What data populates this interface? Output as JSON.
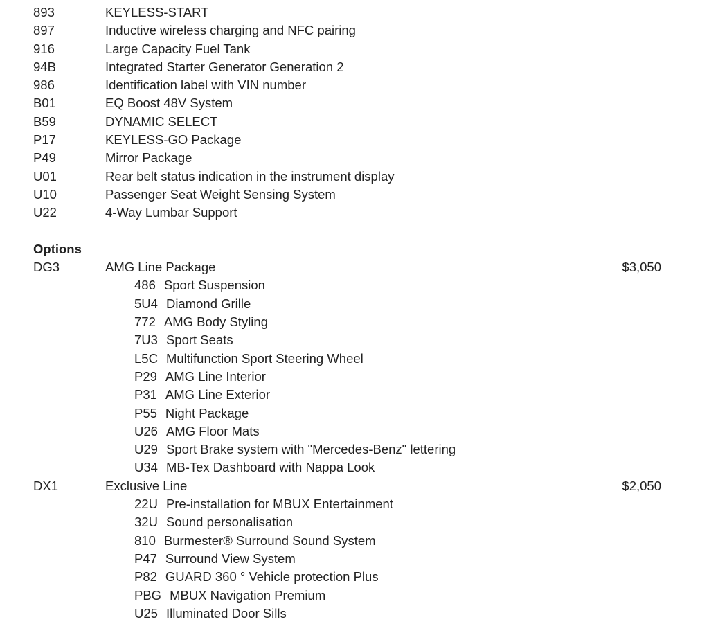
{
  "standard_items": [
    {
      "code": "893",
      "desc": "KEYLESS-START"
    },
    {
      "code": "897",
      "desc": "Inductive wireless charging and NFC pairing"
    },
    {
      "code": "916",
      "desc": "Large Capacity Fuel Tank"
    },
    {
      "code": "94B",
      "desc": "Integrated Starter Generator Generation 2"
    },
    {
      "code": "986",
      "desc": "Identification label with VIN number"
    },
    {
      "code": "B01",
      "desc": "EQ Boost 48V System"
    },
    {
      "code": "B59",
      "desc": "DYNAMIC SELECT"
    },
    {
      "code": "P17",
      "desc": "KEYLESS-GO Package"
    },
    {
      "code": "P49",
      "desc": "Mirror Package"
    },
    {
      "code": "U01",
      "desc": "Rear belt status indication in the instrument display"
    },
    {
      "code": "U10",
      "desc": "Passenger Seat Weight Sensing System"
    },
    {
      "code": "U22",
      "desc": "4-Way Lumbar Support"
    }
  ],
  "options_heading": "Options",
  "options": [
    {
      "code": "DG3",
      "desc": "AMG Line Package",
      "price": "$3,050",
      "items": [
        {
          "code": "486",
          "desc": "Sport Suspension"
        },
        {
          "code": "5U4",
          "desc": "Diamond Grille"
        },
        {
          "code": "772",
          "desc": "AMG Body Styling"
        },
        {
          "code": "7U3",
          "desc": "Sport Seats"
        },
        {
          "code": "L5C",
          "desc": "Multifunction Sport Steering Wheel"
        },
        {
          "code": "P29",
          "desc": "AMG Line Interior"
        },
        {
          "code": "P31",
          "desc": "AMG Line Exterior"
        },
        {
          "code": "P55",
          "desc": "Night Package"
        },
        {
          "code": "U26",
          "desc": "AMG Floor Mats"
        },
        {
          "code": "U29",
          "desc": "Sport Brake system with \"Mercedes-Benz\" lettering"
        },
        {
          "code": "U34",
          "desc": "MB-Tex Dashboard with Nappa Look"
        }
      ]
    },
    {
      "code": "DX1",
      "desc": "Exclusive Line",
      "price": "$2,050",
      "items": [
        {
          "code": "22U",
          "desc": "Pre-installation for MBUX Entertainment"
        },
        {
          "code": "32U",
          "desc": "Sound personalisation"
        },
        {
          "code": "810",
          "desc": "Burmester® Surround Sound System"
        },
        {
          "code": "P47",
          "desc": "Surround View System"
        },
        {
          "code": "P82",
          "desc": "GUARD 360 ° Vehicle protection Plus"
        },
        {
          "code": "PBG",
          "desc": "MBUX Navigation Premium"
        },
        {
          "code": "U25",
          "desc": "Illuminated Door Sills"
        }
      ]
    }
  ]
}
